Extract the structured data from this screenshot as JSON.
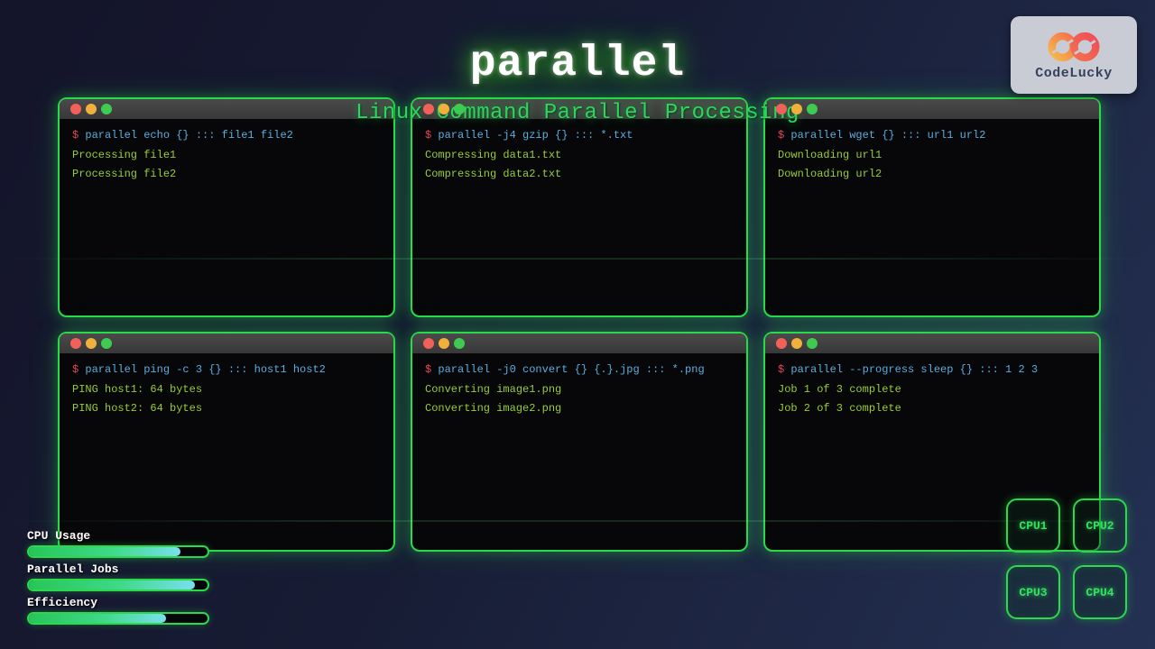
{
  "page": {
    "title": "parallel",
    "subtitle": "Linux Command Parallel Processing"
  },
  "logo": {
    "brand": "CodeLucky",
    "icon": "infinity-icon"
  },
  "prompt_symbol": "$",
  "terminals": [
    {
      "command": "parallel echo {} ::: file1 file2",
      "outputs": [
        "Processing file1",
        "Processing file2"
      ]
    },
    {
      "command": "parallel -j4 gzip {} ::: *.txt",
      "outputs": [
        "Compressing data1.txt",
        "Compressing data2.txt"
      ]
    },
    {
      "command": "parallel wget {} ::: url1 url2",
      "outputs": [
        "Downloading url1",
        "Downloading url2"
      ]
    },
    {
      "command": "parallel ping -c 3 {} ::: host1 host2",
      "outputs": [
        "PING host1: 64 bytes",
        "PING host2: 64 bytes"
      ]
    },
    {
      "command": "parallel -j0 convert {} {.}.jpg ::: *.png",
      "outputs": [
        "Converting image1.png",
        "Converting image2.png"
      ]
    },
    {
      "command": "parallel --progress sleep {} ::: 1 2 3",
      "outputs": [
        "Job 1 of 3 complete",
        "Job 2 of 3 complete"
      ]
    }
  ],
  "stats": {
    "bars": [
      {
        "label": "CPU Usage",
        "percent": 85
      },
      {
        "label": "Parallel Jobs",
        "percent": 93
      },
      {
        "label": "Efficiency",
        "percent": 77
      }
    ]
  },
  "cpus": [
    "CPU1",
    "CPU2",
    "CPU3",
    "CPU4"
  ],
  "colors": {
    "accent_green": "#2bd94a",
    "command_blue": "#5aaede",
    "prompt_red": "#e84158",
    "output_green": "#9acd32",
    "subtitle_green": "#2cd65c",
    "bar_gradient_start": "#27c558",
    "bar_gradient_end": "#7adfee",
    "traffic_red": "#f2605a",
    "traffic_yellow": "#f0b03b",
    "traffic_green": "#3ecb52",
    "logo_card_bg": "#c9ccd4",
    "logo_text": "#36415e"
  }
}
